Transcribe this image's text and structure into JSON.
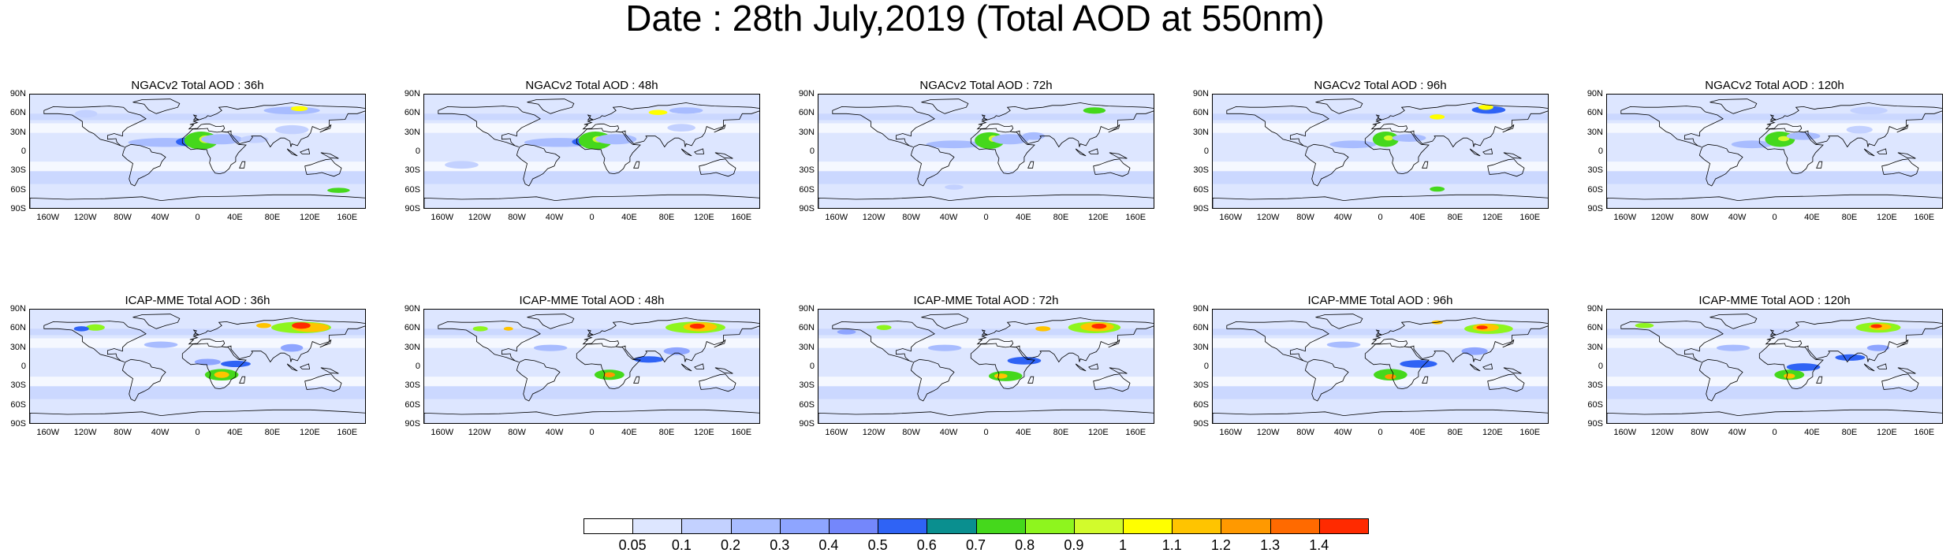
{
  "title": "Date : 28th July,2019 (Total AOD at 550nm)",
  "lat_labels": [
    "90N",
    "60N",
    "30N",
    "0",
    "30S",
    "60S",
    "90S"
  ],
  "lon_labels": [
    "160W",
    "120W",
    "80W",
    "40W",
    "0",
    "40E",
    "80E",
    "120E",
    "160E"
  ],
  "panels": [
    {
      "title": "NGACv2 Total AOD : 36h",
      "row": 0,
      "col": 0
    },
    {
      "title": "NGACv2 Total AOD : 48h",
      "row": 0,
      "col": 1
    },
    {
      "title": "NGACv2 Total AOD : 72h",
      "row": 0,
      "col": 2
    },
    {
      "title": "NGACv2 Total AOD : 96h",
      "row": 0,
      "col": 3
    },
    {
      "title": "NGACv2 Total AOD : 120h",
      "row": 0,
      "col": 4
    },
    {
      "title": "ICAP-MME Total AOD : 36h",
      "row": 1,
      "col": 0
    },
    {
      "title": "ICAP-MME Total AOD : 48h",
      "row": 1,
      "col": 1
    },
    {
      "title": "ICAP-MME Total AOD : 72h",
      "row": 1,
      "col": 2
    },
    {
      "title": "ICAP-MME Total AOD : 96h",
      "row": 1,
      "col": 3
    },
    {
      "title": "ICAP-MME Total AOD : 120h",
      "row": 1,
      "col": 4
    }
  ],
  "colorbar": {
    "labels": [
      "0.05",
      "0.1",
      "0.2",
      "0.3",
      "0.4",
      "0.5",
      "0.6",
      "0.7",
      "0.8",
      "0.9",
      "1",
      "1.1",
      "1.2",
      "1.3",
      "1.4"
    ],
    "colors": [
      "#ffffff",
      "#dde6ff",
      "#c3d1ff",
      "#a8bcff",
      "#8ea5ff",
      "#7487fb",
      "#2f63f5",
      "#0a8f8f",
      "#45d81c",
      "#8ef51e",
      "#d2fb2c",
      "#ffff00",
      "#ffc400",
      "#ff9900",
      "#ff6a00",
      "#ff2a00"
    ]
  }
}
